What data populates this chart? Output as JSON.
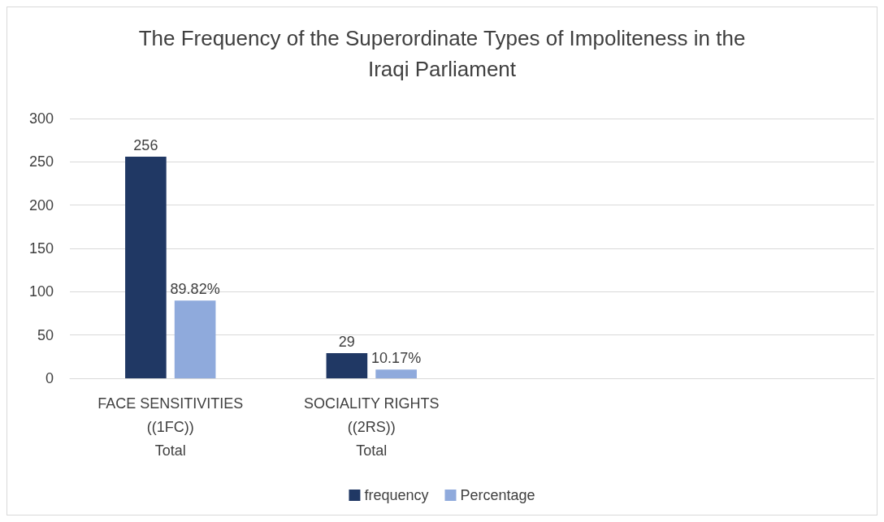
{
  "chart_data": {
    "type": "bar",
    "title": "The Frequency of the Superordinate Types of Impoliteness in the\nIraqi Parliament",
    "categories": [
      "FACE SENSITIVITIES\n((1FC))\nTotal",
      "SOCIALITY RIGHTS\n((2RS))\nTotal",
      null,
      null
    ],
    "series": [
      {
        "name": "frequency",
        "color": "#203864",
        "values": [
          256,
          29,
          null,
          null
        ],
        "value_labels": [
          "256",
          "29",
          null,
          null
        ]
      },
      {
        "name": "Percentage",
        "color": "#8faadc",
        "values": [
          89.82,
          10.17,
          null,
          null
        ],
        "value_labels": [
          "89.82%",
          "10.17%",
          null,
          null
        ]
      }
    ],
    "ylim": [
      0,
      300
    ],
    "yticks": [
      0,
      50,
      100,
      150,
      200,
      250,
      300
    ],
    "grid": "y",
    "legend": "bottom"
  }
}
